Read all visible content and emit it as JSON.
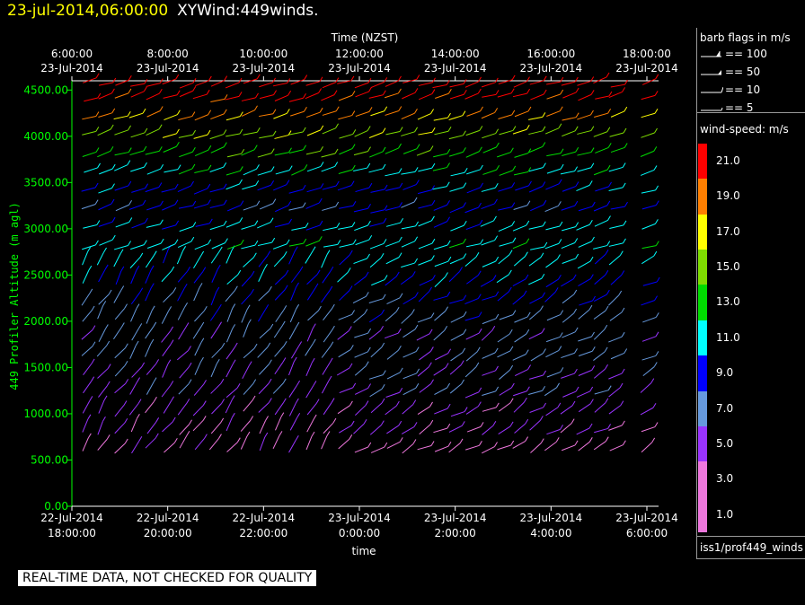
{
  "header": {
    "date": "23-jul-2014,06:00:00",
    "title": "XYWind:449winds."
  },
  "disclaimer": "REAL-TIME DATA, NOT CHECKED FOR QUALITY",
  "legend": {
    "barb_title": "barb flags in m/s",
    "barb_flags": [
      {
        "icon": "flag-100-icon",
        "label": "== 100"
      },
      {
        "icon": "flag-50-icon",
        "label": "== 50"
      },
      {
        "icon": "flag-10-icon",
        "label": "== 10"
      },
      {
        "icon": "flag-5-icon",
        "label": "== 5"
      }
    ],
    "speed_title": "wind-speed: m/s",
    "speed_labels": [
      "21.0",
      "19.0",
      "17.0",
      "15.0",
      "13.0",
      "11.0",
      "9.0",
      "7.0",
      "5.0",
      "3.0",
      "1.0"
    ],
    "speed_colors": [
      "#ff0000",
      "#ff7f00",
      "#ffff00",
      "#7fdd00",
      "#00dd00",
      "#00ffff",
      "#0000ff",
      "#6699dd",
      "#9933ff",
      "#ee77dd"
    ],
    "source": "iss1/prof449_winds"
  },
  "chart_data": {
    "type": "wind barb time-height",
    "ylabel": "449 Profiler Altitude (m agl)",
    "xlabel": "time",
    "top_axis_title": "Time (NZST)",
    "y_ticks": [
      "4500.00",
      "4000.00",
      "3500.00",
      "3000.00",
      "2500.00",
      "2000.00",
      "1500.00",
      "1000.00",
      "500.00",
      "0.00"
    ],
    "ylim": [
      0,
      4600
    ],
    "bottom_ticks": [
      {
        "date": "22-Jul-2014",
        "time": "18:00:00"
      },
      {
        "date": "22-Jul-2014",
        "time": "20:00:00"
      },
      {
        "date": "22-Jul-2014",
        "time": "22:00:00"
      },
      {
        "date": "23-Jul-2014",
        "time": "0:00:00"
      },
      {
        "date": "23-Jul-2014",
        "time": "2:00:00"
      },
      {
        "date": "23-Jul-2014",
        "time": "4:00:00"
      },
      {
        "date": "23-Jul-2014",
        "time": "6:00:00"
      }
    ],
    "top_ticks": [
      {
        "time": "6:00:00",
        "date": "23-Jul-2014"
      },
      {
        "time": "8:00:00",
        "date": "23-Jul-2014"
      },
      {
        "time": "10:00:00",
        "date": "23-Jul-2014"
      },
      {
        "time": "12:00:00",
        "date": "23-Jul-2014"
      },
      {
        "time": "14:00:00",
        "date": "23-Jul-2014"
      },
      {
        "time": "16:00:00",
        "date": "23-Jul-2014"
      },
      {
        "time": "18:00:00",
        "date": "23-Jul-2014"
      }
    ],
    "profile_times_hours": [
      0.0,
      0.33,
      0.67,
      1.0,
      1.33,
      1.67,
      2.0,
      2.33,
      2.67,
      3.0,
      3.33,
      3.67,
      4.0,
      4.33,
      4.67,
      5.0,
      5.33,
      5.67,
      6.0,
      6.33,
      6.67,
      7.0,
      7.33,
      7.67,
      8.0,
      8.33,
      8.67,
      9.0,
      9.33,
      9.67,
      10.0,
      10.33,
      10.67,
      11.0,
      11.67
    ],
    "levels_m": [
      600,
      800,
      1000,
      1200,
      1400,
      1600,
      1800,
      2000,
      2200,
      2400,
      2600,
      2800,
      3000,
      3200,
      3400,
      3600,
      3800,
      4000,
      4200,
      4400,
      4550
    ],
    "speed_by_level_ms": [
      2,
      3,
      3,
      4,
      4,
      5,
      5,
      6,
      7,
      8,
      9,
      10,
      9,
      7,
      8,
      10,
      12,
      14,
      17,
      19,
      21
    ],
    "direction_note": "southerly to south-westerly barbs, strengthening with height"
  }
}
